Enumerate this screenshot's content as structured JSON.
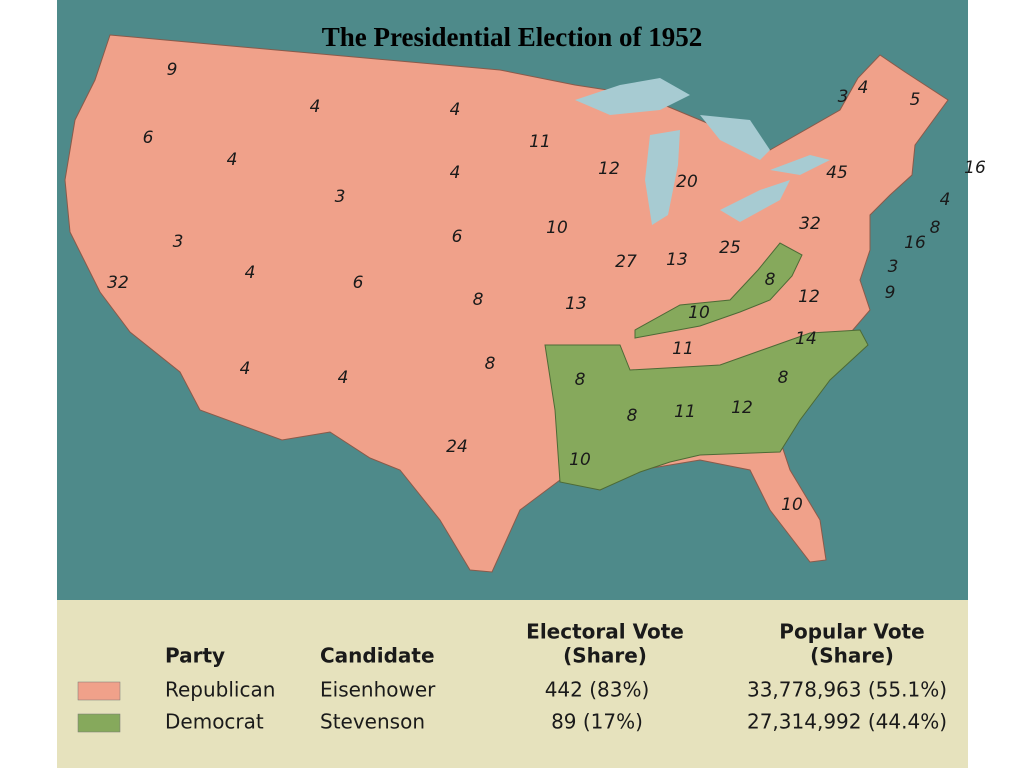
{
  "title": "The Presidential Election of 1952",
  "map": {
    "state_labels": [
      "9",
      "6",
      "4",
      "4",
      "4",
      "11",
      "3",
      "4",
      "5",
      "4",
      "3",
      "12",
      "20",
      "45",
      "16",
      "4",
      "8",
      "16",
      "3",
      "9",
      "32",
      "25",
      "13",
      "27",
      "10",
      "6",
      "3",
      "32",
      "4",
      "6",
      "8",
      "13",
      "8",
      "12",
      "10",
      "14",
      "11",
      "4",
      "4",
      "8",
      "8",
      "8",
      "11",
      "12",
      "8",
      "24",
      "10",
      "10"
    ]
  },
  "legend": {
    "headers": {
      "party": "Party",
      "candidate": "Candidate",
      "electoral": [
        "Electoral Vote",
        "(Share)"
      ],
      "popular": [
        "Popular Vote",
        "(Share)"
      ]
    },
    "rows": [
      {
        "party": "Republican",
        "candidate": "Eisenhower",
        "electoral": "442 (83%)",
        "popular": "33,778,963 (55.1%)",
        "color": "#f0a18a"
      },
      {
        "party": "Democrat",
        "candidate": "Stevenson",
        "electoral": "89 (17%)",
        "popular": "27,314,992 (44.4%)",
        "color": "#86a95c"
      }
    ]
  }
}
